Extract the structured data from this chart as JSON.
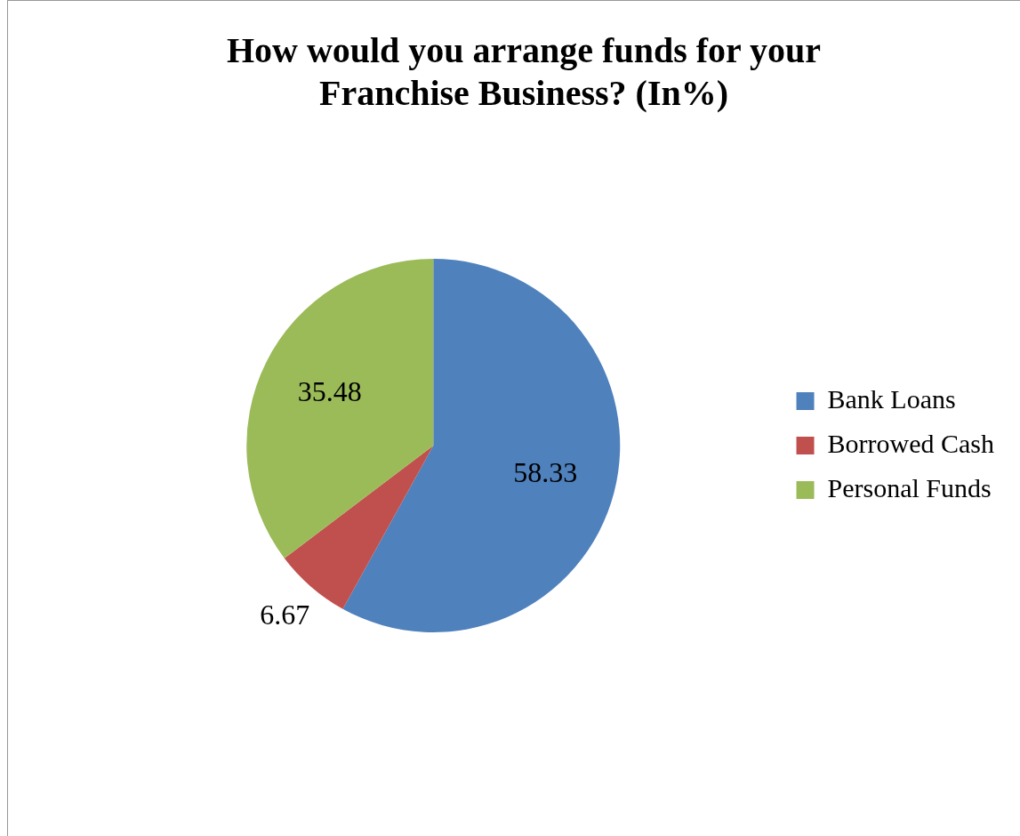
{
  "chart_data": {
    "type": "pie",
    "title": "How would you arrange funds for your Franchise Business? (In%)",
    "categories": [
      "Bank Loans",
      "Borrowed Cash",
      "Personal Funds"
    ],
    "values": [
      58.33,
      6.67,
      35.48
    ],
    "colors": [
      "#4f81bd",
      "#c0504d",
      "#9bbb59"
    ],
    "data_labels": true,
    "legend": "right"
  }
}
